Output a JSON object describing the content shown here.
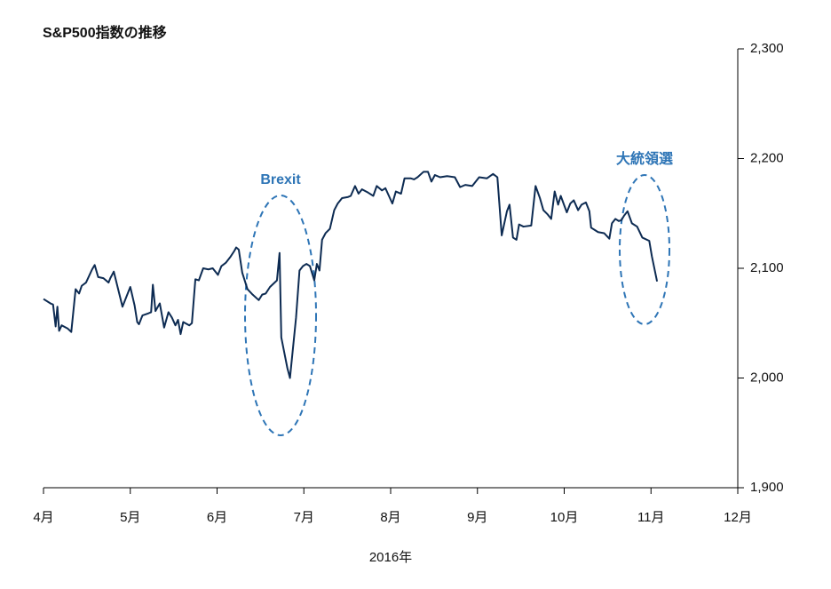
{
  "chart_data": {
    "type": "line",
    "title": "S&P500指数の推移",
    "x_label": "2016年",
    "color": "#0d2b52",
    "xlim": [
      0,
      8
    ],
    "xticks": [
      {
        "value": 0,
        "label": "4月"
      },
      {
        "value": 1,
        "label": "5月"
      },
      {
        "value": 2,
        "label": "6月"
      },
      {
        "value": 3,
        "label": "7月"
      },
      {
        "value": 4,
        "label": "8月"
      },
      {
        "value": 5,
        "label": "9月"
      },
      {
        "value": 6,
        "label": "10月"
      },
      {
        "value": 7,
        "label": "11月"
      },
      {
        "value": 8,
        "label": "12月"
      }
    ],
    "ylim": [
      1900,
      2300
    ],
    "yticks": [
      {
        "value": 1900,
        "label": "1,900"
      },
      {
        "value": 2000,
        "label": "2,000"
      },
      {
        "value": 2100,
        "label": "2,100"
      },
      {
        "value": 2200,
        "label": "2,200"
      },
      {
        "value": 2300,
        "label": "2,300"
      }
    ],
    "annotations": [
      {
        "text": "Brexit"
      },
      {
        "text": "大統領選"
      }
    ],
    "x": [
      0,
      0.08,
      0.11,
      0.14,
      0.16,
      0.18,
      0.21,
      0.28,
      0.32,
      0.37,
      0.41,
      0.44,
      0.49,
      0.56,
      0.59,
      0.63,
      0.69,
      0.75,
      0.77,
      0.81,
      0.86,
      0.91,
      0.95,
      1.0,
      1.05,
      1.08,
      1.1,
      1.14,
      1.21,
      1.24,
      1.26,
      1.29,
      1.34,
      1.39,
      1.44,
      1.48,
      1.52,
      1.55,
      1.58,
      1.61,
      1.68,
      1.71,
      1.75,
      1.79,
      1.84,
      1.9,
      1.95,
      2.01,
      2.05,
      2.1,
      2.15,
      2.2,
      2.22,
      2.25,
      2.29,
      2.35,
      2.41,
      2.48,
      2.52,
      2.56,
      2.61,
      2.69,
      2.72,
      2.74,
      2.78,
      2.81,
      2.84,
      2.91,
      2.95,
      2.99,
      3.03,
      3.07,
      3.12,
      3.15,
      3.18,
      3.21,
      3.25,
      3.3,
      3.35,
      3.39,
      3.44,
      3.51,
      3.54,
      3.59,
      3.63,
      3.67,
      3.74,
      3.8,
      3.84,
      3.9,
      3.94,
      4.02,
      4.06,
      4.12,
      4.16,
      4.23,
      4.27,
      4.31,
      4.38,
      4.43,
      4.47,
      4.51,
      4.57,
      4.65,
      4.74,
      4.8,
      4.86,
      4.94,
      5.02,
      5.11,
      5.18,
      5.23,
      5.28,
      5.34,
      5.37,
      5.41,
      5.45,
      5.48,
      5.53,
      5.62,
      5.67,
      5.72,
      5.76,
      5.81,
      5.85,
      5.89,
      5.93,
      5.96,
      6.03,
      6.07,
      6.11,
      6.16,
      6.2,
      6.25,
      6.29,
      6.31,
      6.35,
      6.39,
      6.46,
      6.52,
      6.55,
      6.59,
      6.63,
      6.66,
      6.69,
      6.73,
      6.78,
      6.84,
      6.9,
      6.98,
      7.01,
      7.07
    ],
    "values": [
      2072,
      2068,
      2067,
      2047,
      2065,
      2043,
      2048,
      2045,
      2042,
      2081,
      2077,
      2084,
      2087,
      2099,
      2103,
      2092,
      2091,
      2087,
      2091,
      2097,
      2081,
      2065,
      2073,
      2083,
      2066,
      2051,
      2049,
      2057,
      2059,
      2060,
      2085,
      2061,
      2068,
      2046,
      2060,
      2055,
      2048,
      2053,
      2040,
      2051,
      2048,
      2050,
      2090,
      2089,
      2100,
      2099,
      2100,
      2094,
      2102,
      2105,
      2110,
      2116,
      2119,
      2117,
      2096,
      2081,
      2076,
      2071,
      2076,
      2077,
      2083,
      2089,
      2114,
      2037,
      2021,
      2009,
      2000,
      2055,
      2098,
      2102,
      2104,
      2102,
      2089,
      2104,
      2098,
      2126,
      2132,
      2136,
      2153,
      2159,
      2164,
      2165,
      2166,
      2175,
      2168,
      2172,
      2169,
      2166,
      2175,
      2171,
      2173,
      2159,
      2170,
      2168,
      2182,
      2182,
      2181,
      2183,
      2188,
      2188,
      2179,
      2185,
      2183,
      2184,
      2183,
      2174,
      2176,
      2175,
      2183,
      2182,
      2186,
      2183,
      2130,
      2152,
      2158,
      2128,
      2126,
      2140,
      2138,
      2139,
      2175,
      2164,
      2153,
      2149,
      2145,
      2170,
      2158,
      2166,
      2151,
      2159,
      2162,
      2153,
      2158,
      2160,
      2152,
      2137,
      2135,
      2133,
      2132,
      2127,
      2141,
      2145,
      2143,
      2144,
      2148,
      2152,
      2141,
      2138,
      2128,
      2125,
      2111,
      2088
    ]
  }
}
